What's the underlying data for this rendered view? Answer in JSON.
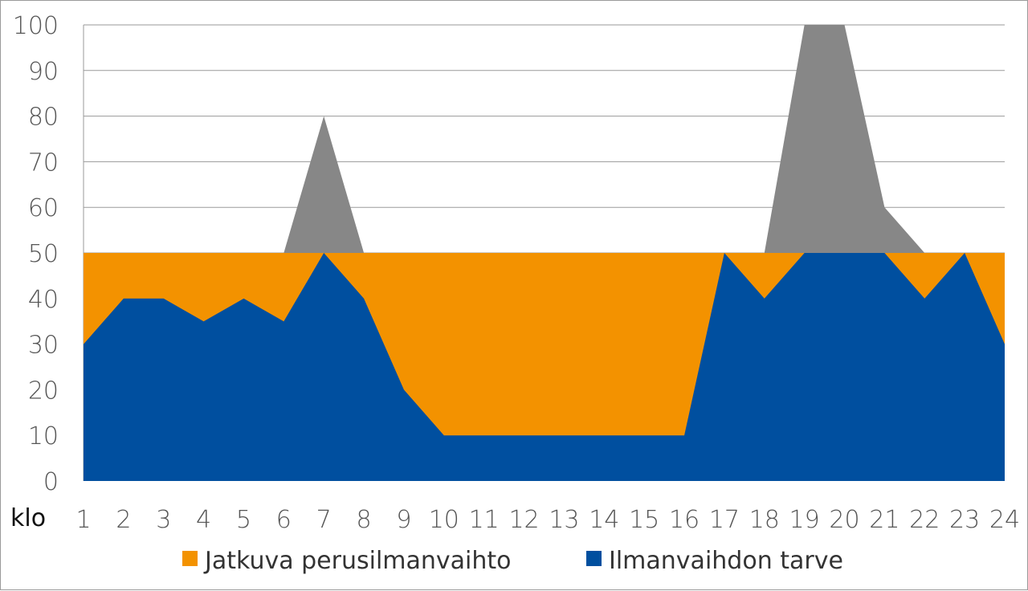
{
  "chart_data": {
    "type": "area",
    "x_prefix": "klo",
    "categories": [
      "1",
      "2",
      "3",
      "4",
      "5",
      "6",
      "7",
      "8",
      "9",
      "10",
      "11",
      "12",
      "13",
      "14",
      "15",
      "16",
      "17",
      "18",
      "19",
      "20",
      "21",
      "22",
      "23",
      "24"
    ],
    "x": [
      1,
      2,
      3,
      4,
      5,
      6,
      7,
      8,
      9,
      10,
      11,
      12,
      13,
      14,
      15,
      16,
      17,
      18,
      19,
      20,
      21,
      22,
      23,
      24
    ],
    "ylim": [
      0,
      100
    ],
    "yticks": [
      0,
      10,
      20,
      30,
      40,
      50,
      60,
      70,
      80,
      90,
      100
    ],
    "grid": true,
    "legend_position": "bottom",
    "series": [
      {
        "name": "Ilmanvaihdon tarve",
        "color": "#004f9f",
        "values": [
          30,
          40,
          40,
          35,
          40,
          35,
          80,
          40,
          20,
          10,
          10,
          10,
          10,
          10,
          10,
          10,
          50,
          40,
          100,
          100,
          60,
          40,
          50,
          30
        ]
      },
      {
        "name": "Jatkuva perusilmanvaihto",
        "color": "#f39200",
        "constant": 50
      }
    ],
    "excess_color": "#878787",
    "legend": [
      {
        "label": "Jatkuva perusilmanvaihto",
        "color": "#f39200"
      },
      {
        "label": "Ilmanvaihdon tarve",
        "color": "#004f9f"
      }
    ]
  }
}
